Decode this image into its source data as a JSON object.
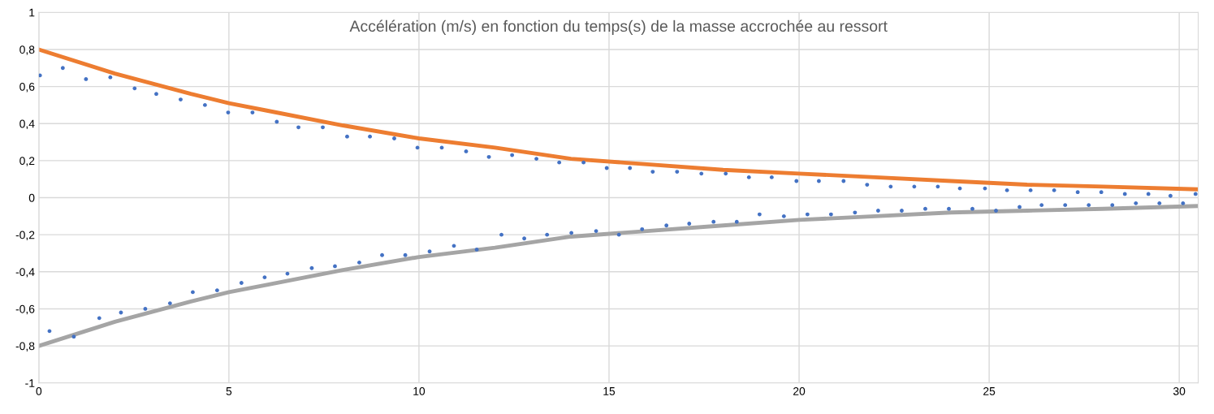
{
  "chart_data": {
    "type": "scatter",
    "title": "Accélération (m/s) en fonction du temps(s) de la masse accrochée au ressort",
    "xlim": [
      0,
      30.5
    ],
    "xticks": [
      0,
      5,
      10,
      15,
      20,
      25,
      30
    ],
    "ylim": [
      -1,
      1
    ],
    "yticks": [
      {
        "value": -1,
        "label": "-1"
      },
      {
        "value": -0.8,
        "label": "-0,8"
      },
      {
        "value": -0.6,
        "label": "-0,6"
      },
      {
        "value": -0.4,
        "label": "-0,4"
      },
      {
        "value": -0.2,
        "label": "-0,2"
      },
      {
        "value": 0,
        "label": "0"
      },
      {
        "value": 0.2,
        "label": "0,2"
      },
      {
        "value": 0.4,
        "label": "0,4"
      },
      {
        "value": 0.6,
        "label": "0,6"
      },
      {
        "value": 0.8,
        "label": "0,8"
      },
      {
        "value": 1,
        "label": "1"
      }
    ],
    "grid": true,
    "series": [
      {
        "marker": "circle",
        "color": "#4472c4",
        "x": [
          0.03,
          0.28,
          0.63,
          0.92,
          1.24,
          1.59,
          1.88,
          2.16,
          2.52,
          2.8,
          3.09,
          3.45,
          3.73,
          4.05,
          4.37,
          4.69,
          4.98,
          5.33,
          5.62,
          5.94,
          6.26,
          6.54,
          6.83,
          7.18,
          7.47,
          7.79,
          8.11,
          8.43,
          8.71,
          9.03,
          9.35,
          9.64,
          9.96,
          10.28,
          10.6,
          10.92,
          11.24,
          11.52,
          11.84,
          12.17,
          12.45,
          12.77,
          13.09,
          13.37,
          13.69,
          14.01,
          14.33,
          14.66,
          14.94,
          15.26,
          15.55,
          15.87,
          16.15,
          16.51,
          16.79,
          17.11,
          17.43,
          17.75,
          18.07,
          18.36,
          18.68,
          18.96,
          19.28,
          19.6,
          19.93,
          20.22,
          20.52,
          20.84,
          21.17,
          21.47,
          21.79,
          22.08,
          22.41,
          22.7,
          23.03,
          23.32,
          23.65,
          23.94,
          24.23,
          24.56,
          24.89,
          25.18,
          25.47,
          25.8,
          26.09,
          26.38,
          26.71,
          27.0,
          27.33,
          27.62,
          27.95,
          28.24,
          28.57,
          28.86,
          29.19,
          29.48,
          29.77,
          30.1,
          30.43
        ],
        "values": [
          0.66,
          -0.72,
          0.7,
          -0.75,
          0.64,
          -0.65,
          0.65,
          -0.62,
          0.59,
          -0.6,
          0.56,
          -0.57,
          0.53,
          -0.51,
          0.5,
          -0.5,
          0.46,
          -0.46,
          0.46,
          -0.43,
          0.41,
          -0.41,
          0.38,
          -0.38,
          0.38,
          -0.37,
          0.33,
          -0.35,
          0.33,
          -0.31,
          0.32,
          -0.31,
          0.27,
          -0.29,
          0.27,
          -0.26,
          0.25,
          -0.28,
          0.22,
          -0.2,
          0.23,
          -0.22,
          0.21,
          -0.2,
          0.19,
          -0.19,
          0.19,
          -0.18,
          0.16,
          -0.2,
          0.16,
          -0.17,
          0.14,
          -0.15,
          0.14,
          -0.14,
          0.13,
          -0.13,
          0.13,
          -0.13,
          0.11,
          -0.09,
          0.11,
          -0.1,
          0.09,
          -0.09,
          0.09,
          -0.09,
          0.09,
          -0.08,
          0.07,
          -0.07,
          0.06,
          -0.07,
          0.06,
          -0.06,
          0.06,
          -0.06,
          0.05,
          -0.06,
          0.05,
          -0.07,
          0.04,
          -0.05,
          0.04,
          -0.04,
          0.04,
          -0.04,
          0.03,
          -0.04,
          0.03,
          -0.04,
          0.02,
          -0.03,
          0.02,
          -0.03,
          0.01,
          -0.03,
          0.02
        ]
      },
      {
        "type": "line",
        "color": "#ed7d31",
        "marker": "none",
        "x": [
          0,
          2,
          4,
          5,
          6,
          8,
          10,
          12,
          14,
          16,
          18,
          20,
          22,
          24,
          26,
          28,
          30.5
        ],
        "values": [
          0.8,
          0.67,
          0.56,
          0.51,
          0.47,
          0.39,
          0.32,
          0.27,
          0.21,
          0.18,
          0.15,
          0.13,
          0.11,
          0.09,
          0.07,
          0.06,
          0.045
        ]
      },
      {
        "type": "line",
        "color": "#a5a5a5",
        "marker": "none",
        "x": [
          0,
          2,
          4,
          5,
          6,
          8,
          10,
          12,
          14,
          16,
          18,
          20,
          22,
          24,
          26,
          28,
          30.5
        ],
        "values": [
          -0.8,
          -0.67,
          -0.56,
          -0.51,
          -0.47,
          -0.39,
          -0.32,
          -0.27,
          -0.21,
          -0.18,
          -0.15,
          -0.12,
          -0.1,
          -0.08,
          -0.07,
          -0.06,
          -0.045
        ]
      }
    ]
  }
}
